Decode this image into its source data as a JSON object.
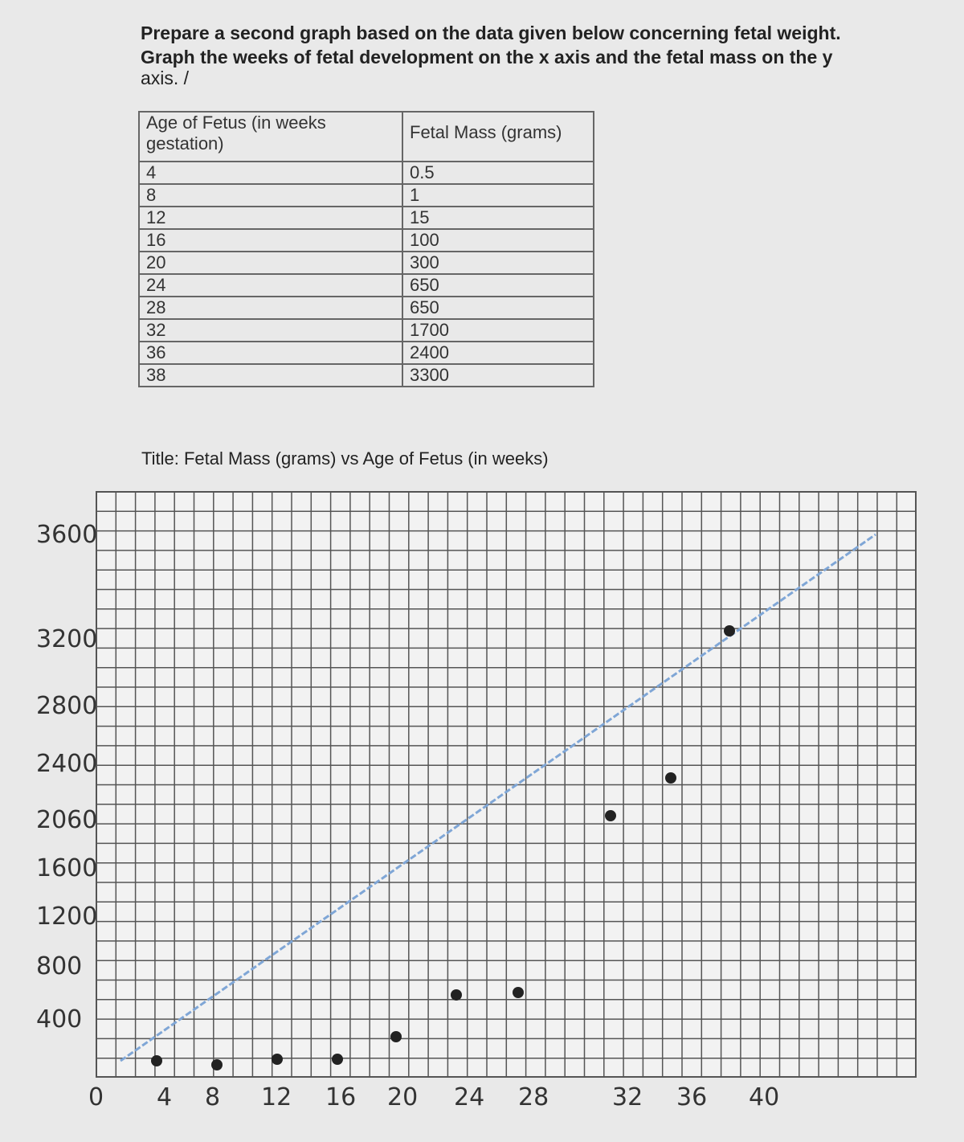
{
  "instructions": [
    "Prepare a second graph based on the data given below concerning fetal weight.",
    "Graph the weeks of fetal development on the x axis and the fetal mass on the y",
    "axis. /"
  ],
  "table": {
    "header": [
      "Age of Fetus (in weeks gestation)",
      "Fetal Mass (grams)"
    ],
    "rows": [
      [
        "4",
        "0.5"
      ],
      [
        "8",
        "1"
      ],
      [
        "12",
        "15"
      ],
      [
        "16",
        "100"
      ],
      [
        "20",
        "300"
      ],
      [
        "24",
        "650"
      ],
      [
        "28",
        "650"
      ],
      [
        "32",
        "1700"
      ],
      [
        "36",
        "2400"
      ],
      [
        "38",
        "3300"
      ]
    ]
  },
  "graph_title": "Title: Fetal Mass (grams) vs Age of Fetus (in weeks)",
  "graph": {
    "y_labels": [
      "3600",
      "3200",
      "2800",
      "2400",
      "2060",
      "1600",
      "1200",
      "800",
      "400"
    ],
    "x_labels": [
      "0",
      "4",
      "8",
      "12",
      "16",
      "20",
      "24",
      "28",
      "32",
      "36",
      "40"
    ]
  }
}
